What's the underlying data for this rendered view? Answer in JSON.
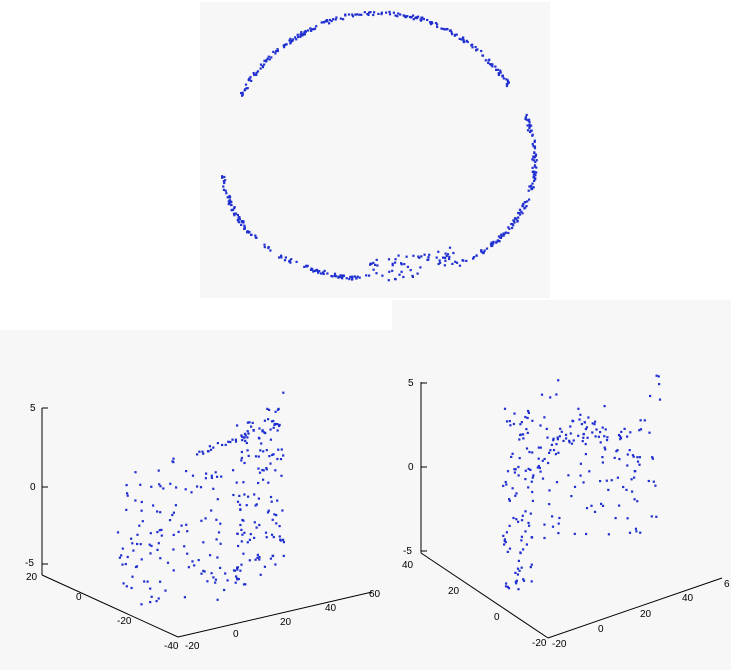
{
  "chart_data": [
    {
      "type": "scatter",
      "title": "",
      "description_note": "",
      "ring": {
        "points": 520,
        "gaps_deg": [
          [
            170,
            205
          ],
          [
            330,
            344
          ]
        ],
        "dense_cluster_deg": [
          60,
          95
        ]
      },
      "axes": "none"
    },
    {
      "type": "scatter",
      "title": "",
      "z_ticks": [
        "5",
        "0",
        "-5"
      ],
      "y_ticks": [
        "20",
        "0",
        "-20",
        "-40"
      ],
      "x_ticks": [
        "-20",
        "0",
        "20",
        "40",
        "60"
      ],
      "points": 300
    },
    {
      "type": "scatter",
      "title": "",
      "z_ticks": [
        "5",
        "0",
        "-5"
      ],
      "y_ticks": [
        "40",
        "20",
        "0",
        "-20"
      ],
      "x_ticks": [
        "-20",
        "0",
        "20",
        "40",
        "6"
      ],
      "points": 260
    }
  ]
}
